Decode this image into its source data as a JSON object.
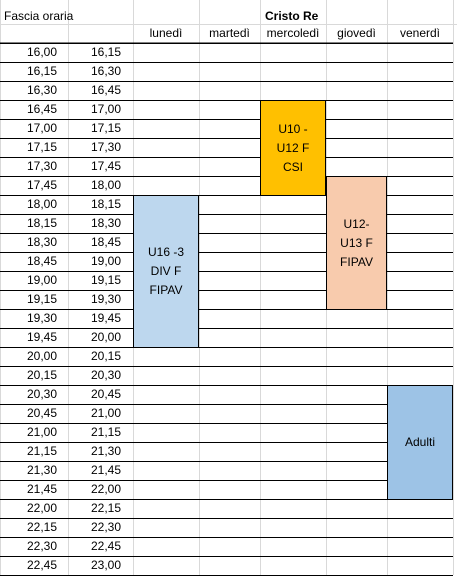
{
  "header": {
    "fascia_label": "Fascia oraria",
    "venue": "Cristo Re",
    "days": [
      "lunedì",
      "martedì",
      "mercoledì",
      "giovedì",
      "venerdì"
    ]
  },
  "rows": [
    [
      "16,00",
      "16,15"
    ],
    [
      "16,15",
      "16,30"
    ],
    [
      "16,30",
      "16,45"
    ],
    [
      "16,45",
      "17,00"
    ],
    [
      "17,00",
      "17,15"
    ],
    [
      "17,15",
      "17,30"
    ],
    [
      "17,30",
      "17,45"
    ],
    [
      "17,45",
      "18,00"
    ],
    [
      "18,00",
      "18,15"
    ],
    [
      "18,15",
      "18,30"
    ],
    [
      "18,30",
      "18,45"
    ],
    [
      "18,45",
      "19,00"
    ],
    [
      "19,00",
      "19,15"
    ],
    [
      "19,15",
      "19,30"
    ],
    [
      "19,30",
      "19,45"
    ],
    [
      "19,45",
      "20,00"
    ],
    [
      "20,00",
      "20,15"
    ],
    [
      "20,15",
      "20,30"
    ],
    [
      "20,30",
      "20,45"
    ],
    [
      "20,45",
      "21,00"
    ],
    [
      "21,00",
      "21,15"
    ],
    [
      "21,15",
      "21,30"
    ],
    [
      "21,30",
      "21,45"
    ],
    [
      "21,45",
      "22,00"
    ],
    [
      "22,00",
      "22,15"
    ],
    [
      "22,15",
      "22,30"
    ],
    [
      "22,30",
      "22,45"
    ],
    [
      "22,45",
      "23,00"
    ]
  ],
  "blocks": [
    {
      "lines": [
        "U10 -",
        "U12 F",
        "CSI"
      ],
      "color": "#ffc000",
      "day": "mercoledì",
      "start": "16,45",
      "end": "18,00"
    },
    {
      "lines": [
        "U12-",
        "U13 F",
        "FIPAV"
      ],
      "color": "#f8cbad",
      "day": "giovedì",
      "start": "17,45",
      "end": "19,30"
    },
    {
      "lines": [
        "U16 -3",
        "DIV F",
        "FIPAV"
      ],
      "color": "#bdd7ee",
      "day": "lunedì",
      "start": "18,00",
      "end": "20,00"
    },
    {
      "lines": [
        "Adulti"
      ],
      "color": "#9dc3e6",
      "day": "venerdì",
      "start": "20,30",
      "end": "22,00"
    }
  ]
}
